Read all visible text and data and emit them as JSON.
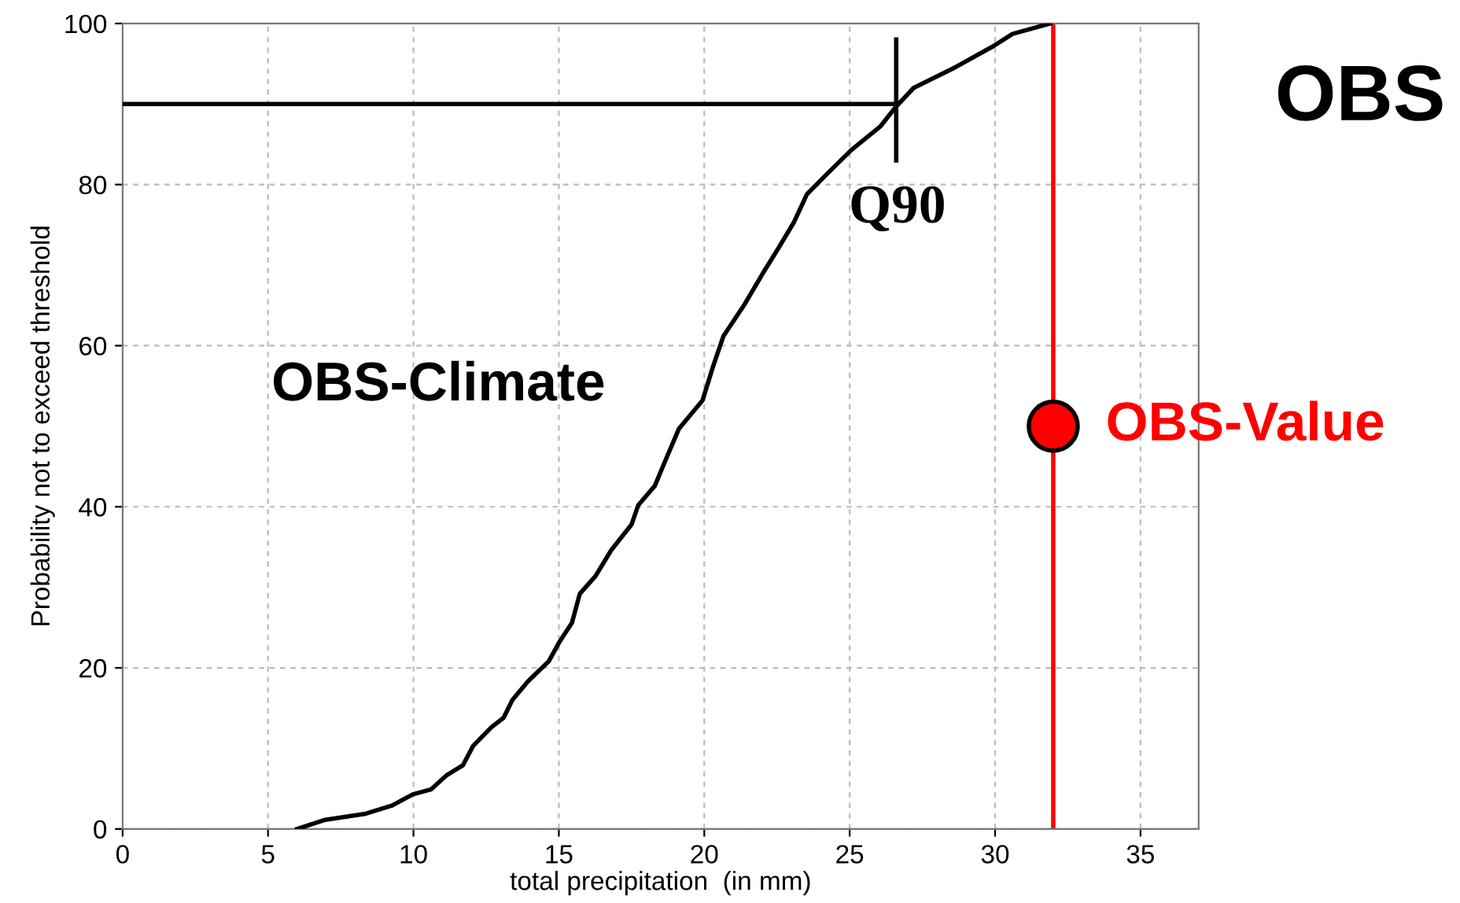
{
  "chart_data": {
    "type": "line",
    "title": "OBS",
    "xlabel": "total precipitation  (in mm)",
    "ylabel": "Probability not to exceed threshold",
    "xlim": [
      0,
      37
    ],
    "ylim": [
      0,
      100
    ],
    "xticks": [
      0,
      5,
      10,
      15,
      20,
      25,
      30,
      35
    ],
    "yticks": [
      0,
      20,
      40,
      60,
      80,
      100
    ],
    "grid": true,
    "legend": false,
    "marker": "none",
    "line_style": "solid",
    "series": [
      {
        "name": "OBS-Climate",
        "color": "#000000",
        "x": [
          6.0,
          6.93,
          8.36,
          9.26,
          9.98,
          10.6,
          11.15,
          11.7,
          12.05,
          12.67,
          13.1,
          13.4,
          13.93,
          14.65,
          15.0,
          15.45,
          15.72,
          16.26,
          16.8,
          17.5,
          17.73,
          18.3,
          18.6,
          19.13,
          19.94,
          20.3,
          20.66,
          21.38,
          22.0,
          22.55,
          23.08,
          23.53,
          24.16,
          25.06,
          26.05,
          26.6,
          27.2,
          28.65,
          29.9,
          30.6,
          31.9
        ],
        "values": [
          0,
          1.1,
          1.9,
          2.9,
          4.3,
          4.9,
          6.7,
          7.9,
          10.3,
          12.6,
          13.8,
          16.0,
          18.3,
          20.8,
          23.1,
          25.6,
          29.2,
          31.4,
          34.6,
          37.8,
          40.2,
          42.6,
          45.2,
          49.7,
          53.2,
          57.4,
          61.2,
          65.1,
          68.9,
          72.1,
          75.3,
          78.8,
          81.1,
          84.3,
          87.2,
          89.7,
          92.0,
          94.6,
          97.1,
          98.7,
          100
        ]
      },
      {
        "color": "#000000",
        "x": [
          0,
          26.6
        ],
        "values": [
          90,
          90
        ]
      },
      {
        "color": "#000000",
        "x": [
          26.6,
          26.6
        ],
        "values": [
          83,
          98
        ]
      },
      {
        "name": "OBS-Value",
        "type": "scatter",
        "marker": "circle",
        "color": "#ff0000",
        "x": [
          32
        ],
        "values": [
          50
        ]
      }
    ],
    "ref_lines": [
      {
        "axis": "x",
        "value": 32,
        "color": "#ff0000"
      }
    ],
    "annotations": [
      "Q90"
    ]
  }
}
